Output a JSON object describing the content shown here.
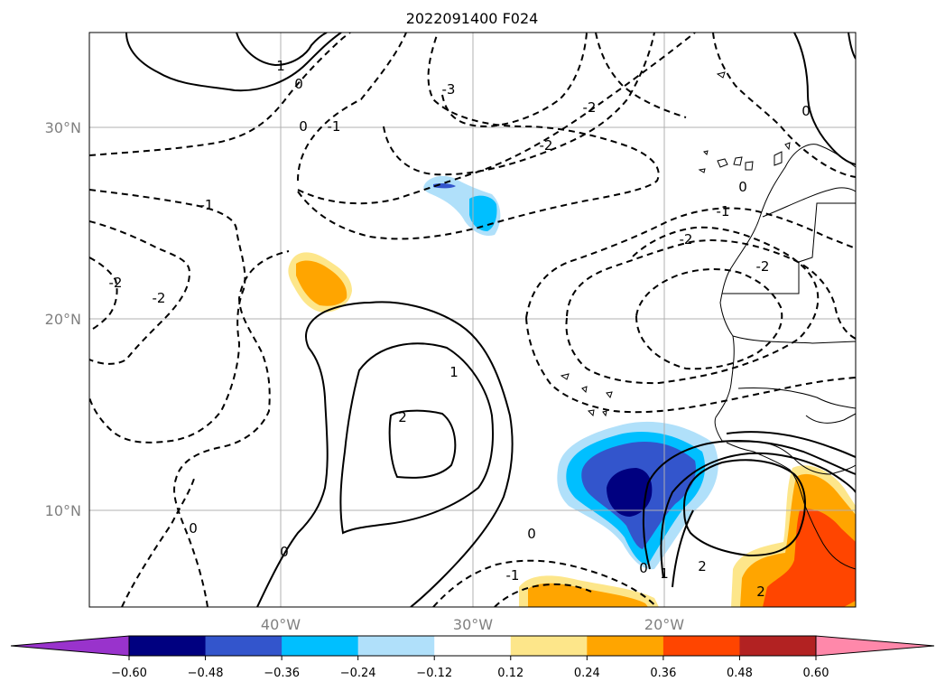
{
  "title": "2022091400 F024",
  "map": {
    "lat_labels": [
      "30°N",
      "20°N",
      "10°N"
    ],
    "lon_labels": [
      "40°W",
      "30°W",
      "20°W"
    ],
    "lat_values": [
      30,
      20,
      10
    ],
    "lon_values": [
      -40,
      -30,
      -20
    ],
    "extent": {
      "lon_min": -50,
      "lon_max": -10,
      "lat_min": 5,
      "lat_max": 35
    }
  },
  "contour_labels": [
    {
      "text": "1"
    },
    {
      "text": "0"
    },
    {
      "text": "0"
    },
    {
      "text": "-1"
    },
    {
      "text": "-3"
    },
    {
      "text": "-2"
    },
    {
      "text": "-2"
    },
    {
      "text": "0"
    },
    {
      "text": "-1"
    },
    {
      "text": "-1"
    },
    {
      "text": "-2"
    },
    {
      "text": "-2"
    },
    {
      "text": "-2"
    },
    {
      "text": "-2"
    },
    {
      "text": "1"
    },
    {
      "text": "2"
    },
    {
      "text": "0"
    },
    {
      "text": "0"
    },
    {
      "text": "0"
    },
    {
      "text": "-1"
    },
    {
      "text": "0"
    },
    {
      "text": "1"
    },
    {
      "text": "2"
    },
    {
      "text": "2"
    },
    {
      "text": "0"
    }
  ],
  "colorbar": {
    "ticks": [
      "−0.60",
      "−0.48",
      "−0.36",
      "−0.24",
      "−0.12",
      "0.12",
      "0.24",
      "0.36",
      "0.48",
      "0.60"
    ],
    "colors": [
      "#9933cc",
      "#000080",
      "#3355cc",
      "#00bfff",
      "#b0e0fa",
      "#ffffff",
      "#fde68a",
      "#ffa500",
      "#ff4500",
      "#b22222",
      "#ff88aa"
    ]
  }
}
